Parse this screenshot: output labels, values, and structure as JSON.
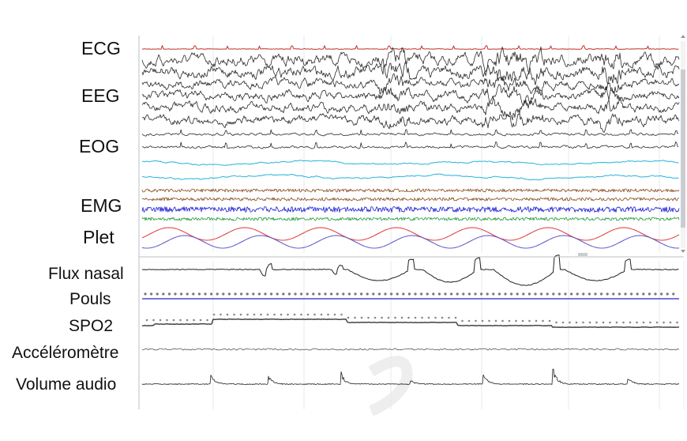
{
  "upper_panel": {
    "channels": [
      {
        "id": "ecg",
        "label": "ECG",
        "color": "#c0302a"
      },
      {
        "id": "eeg",
        "label": "EEG",
        "color": "#2a2a2a"
      },
      {
        "id": "eog",
        "label": "EOG",
        "colors": [
          "#2a2a2a",
          "#27b3d9"
        ]
      },
      {
        "id": "emg",
        "label": "EMG",
        "colors": [
          "#8a4a1f",
          "#1a1ad4",
          "#1f9a3a"
        ]
      },
      {
        "id": "plet",
        "label": "Plet",
        "colors": [
          "#e03a3a",
          "#5a58c8"
        ]
      }
    ]
  },
  "lower_panel": {
    "channels": [
      {
        "id": "flux-nasal",
        "label": "Flux nasal",
        "color": "#222222"
      },
      {
        "id": "pouls",
        "label": "Pouls",
        "color": "#4a4ad0"
      },
      {
        "id": "spo2",
        "label": "SPO2",
        "color": "#444444"
      },
      {
        "id": "accelerometre",
        "label": "Accéléromètre",
        "color": "#555555"
      },
      {
        "id": "volume-audio",
        "label": "Volume audio",
        "color": "#222222"
      }
    ]
  },
  "colors": {
    "grid": "#e6e9ec",
    "scrollbar": "#c9ccd0",
    "panel_border": "#b9c0c6",
    "watermark": "#eeeeee"
  }
}
